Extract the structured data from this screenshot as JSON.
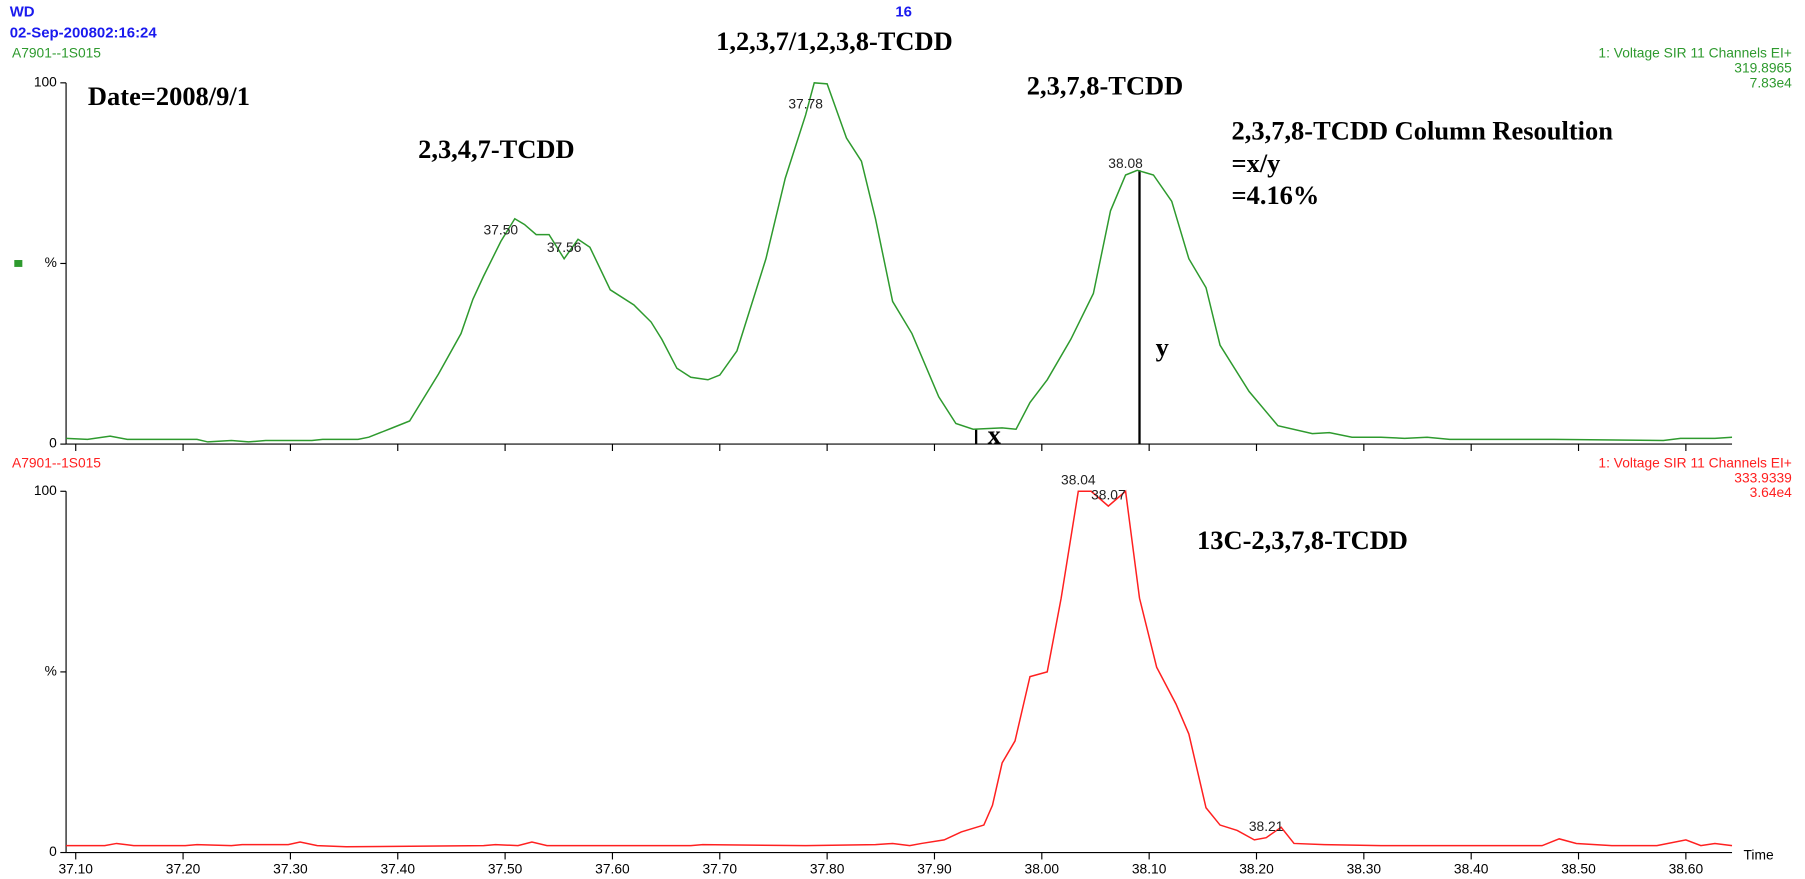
{
  "header": {
    "title": "WD",
    "date": "02-Sep-200802:16:24",
    "scan": "16"
  },
  "chart_data": [
    {
      "type": "line",
      "color": "#2e9a2e",
      "name": "A7901--1S015",
      "description": "1: Voltage SIR 11 Channels EI+",
      "mass": "319.8965",
      "intensity": "7.83e4",
      "annotations": [
        "Date=2008/9/1",
        "2,3,4,7-TCDD",
        "1,2,3,7/1,2,3,8-TCDD",
        "2,3,7,8-TCDD",
        "2,3,7,8-TCDD Column Resoultion",
        "=x/y",
        "=4.16%",
        "x",
        "y"
      ],
      "peak_labels": [
        "37.50",
        "37.56",
        "37.78",
        "38.08"
      ],
      "xlim": [
        37.091,
        38.643
      ],
      "ylim": [
        0,
        100
      ],
      "yticks": [
        0,
        {
          "value": 50,
          "label": "%"
        },
        100
      ],
      "x": [
        37.091,
        37.111,
        37.132,
        37.148,
        37.213,
        37.223,
        37.245,
        37.261,
        37.277,
        37.32,
        37.33,
        37.363,
        37.373,
        37.395,
        37.411,
        37.438,
        37.459,
        37.47,
        37.48,
        37.496,
        37.509,
        37.518,
        37.529,
        37.541,
        37.555,
        37.568,
        37.579,
        37.598,
        37.62,
        37.636,
        37.646,
        37.66,
        37.673,
        37.689,
        37.7,
        37.716,
        37.743,
        37.761,
        37.78,
        37.788,
        37.8,
        37.818,
        37.832,
        37.845,
        37.861,
        37.879,
        37.904,
        37.92,
        37.936,
        37.963,
        37.976,
        37.989,
        38.005,
        38.027,
        38.048,
        38.064,
        38.078,
        38.089,
        38.104,
        38.121,
        38.137,
        38.153,
        38.166,
        38.193,
        38.22,
        38.252,
        38.268,
        38.289,
        38.316,
        38.338,
        38.359,
        38.38,
        38.423,
        38.477,
        38.579,
        38.595,
        38.627,
        38.643
      ],
      "series": [
        {
          "name": "A7901--1S015",
          "color": "#2e9a2e",
          "values": [
            1.6,
            1.3,
            2.2,
            1.3,
            1.3,
            0.6,
            1.0,
            0.6,
            1.0,
            1.0,
            1.3,
            1.3,
            1.9,
            4.5,
            6.4,
            19.4,
            30.6,
            40.1,
            46.5,
            56.1,
            62.4,
            60.8,
            58.0,
            58.0,
            51.3,
            56.7,
            54.5,
            42.7,
            38.5,
            33.8,
            29.0,
            21.0,
            18.5,
            17.8,
            19.1,
            25.8,
            51.3,
            73.6,
            91.1,
            100,
            99.7,
            84.7,
            78.3,
            62.4,
            39.5,
            30.6,
            13.1,
            5.7,
            4.1,
            4.5,
            4.1,
            11.5,
            17.8,
            29.0,
            41.7,
            64.6,
            74.5,
            75.8,
            74.5,
            67.2,
            51.3,
            43.3,
            27.4,
            14.6,
            5.1,
            2.9,
            3.2,
            1.9,
            1.9,
            1.6,
            1.9,
            1.3,
            1.3,
            1.3,
            1.0,
            1.6,
            1.6,
            1.9
          ]
        }
      ]
    },
    {
      "type": "line",
      "color": "#ff2020",
      "name": "A7901--1S015",
      "description": "1: Voltage SIR 11 Channels EI+",
      "mass": "333.9339",
      "intensity": "3.64e4",
      "annotations": [
        "13C-2,3,7,8-TCDD"
      ],
      "peak_labels": [
        "38.04",
        "38.07",
        "38.21"
      ],
      "xlabel": "Time",
      "xlim": [
        37.091,
        38.643
      ],
      "ylim": [
        0,
        100
      ],
      "yticks": [
        0,
        {
          "value": 50,
          "label": "%"
        },
        100
      ],
      "xticks": [
        {
          "value": 37.1,
          "label": "37.10"
        },
        {
          "value": 37.2,
          "label": "37.20"
        },
        {
          "value": 37.3,
          "label": "37.30"
        },
        {
          "value": 37.4,
          "label": "37.40"
        },
        {
          "value": 37.5,
          "label": "37.50"
        },
        {
          "value": 37.6,
          "label": "37.60"
        },
        {
          "value": 37.7,
          "label": "37.70"
        },
        {
          "value": 37.8,
          "label": "37.80"
        },
        {
          "value": 37.9,
          "label": "37.90"
        },
        {
          "value": 38.0,
          "label": "38.00"
        },
        {
          "value": 38.1,
          "label": "38.10"
        },
        {
          "value": 38.2,
          "label": "38.20"
        },
        {
          "value": 38.3,
          "label": "38.30"
        },
        {
          "value": 38.4,
          "label": "38.40"
        },
        {
          "value": 38.5,
          "label": "38.50"
        },
        {
          "value": 38.6,
          "label": "38.60"
        }
      ],
      "x": [
        37.091,
        37.127,
        37.138,
        37.154,
        37.202,
        37.213,
        37.245,
        37.255,
        37.298,
        37.309,
        37.325,
        37.352,
        37.48,
        37.491,
        37.512,
        37.525,
        37.539,
        37.673,
        37.684,
        37.78,
        37.845,
        37.861,
        37.877,
        37.888,
        37.909,
        37.925,
        37.946,
        37.954,
        37.963,
        37.975,
        37.989,
        38.005,
        38.018,
        38.034,
        38.046,
        38.062,
        38.078,
        38.091,
        38.107,
        38.125,
        38.137,
        38.153,
        38.166,
        38.182,
        38.198,
        38.209,
        38.223,
        38.235,
        38.263,
        38.316,
        38.423,
        38.466,
        38.482,
        38.498,
        38.531,
        38.573,
        38.6,
        38.614,
        38.627,
        38.643
      ],
      "series": [
        {
          "name": "A7901--1S015",
          "color": "#ff2020",
          "values": [
            1.9,
            1.9,
            2.5,
            1.9,
            1.9,
            2.2,
            1.9,
            2.2,
            2.2,
            2.9,
            1.9,
            1.6,
            1.9,
            2.2,
            1.9,
            2.9,
            1.9,
            1.9,
            2.2,
            1.9,
            2.2,
            2.5,
            1.9,
            2.5,
            3.5,
            5.7,
            7.6,
            13.1,
            24.8,
            30.9,
            48.7,
            50.0,
            70.4,
            100,
            100,
            95.9,
            100,
            70.4,
            51.3,
            41.1,
            32.8,
            12.4,
            7.6,
            6.1,
            3.5,
            4.1,
            7.0,
            2.5,
            2.2,
            1.9,
            1.9,
            1.9,
            3.8,
            2.5,
            1.9,
            1.9,
            3.5,
            1.9,
            2.5,
            1.9
          ]
        }
      ]
    }
  ]
}
